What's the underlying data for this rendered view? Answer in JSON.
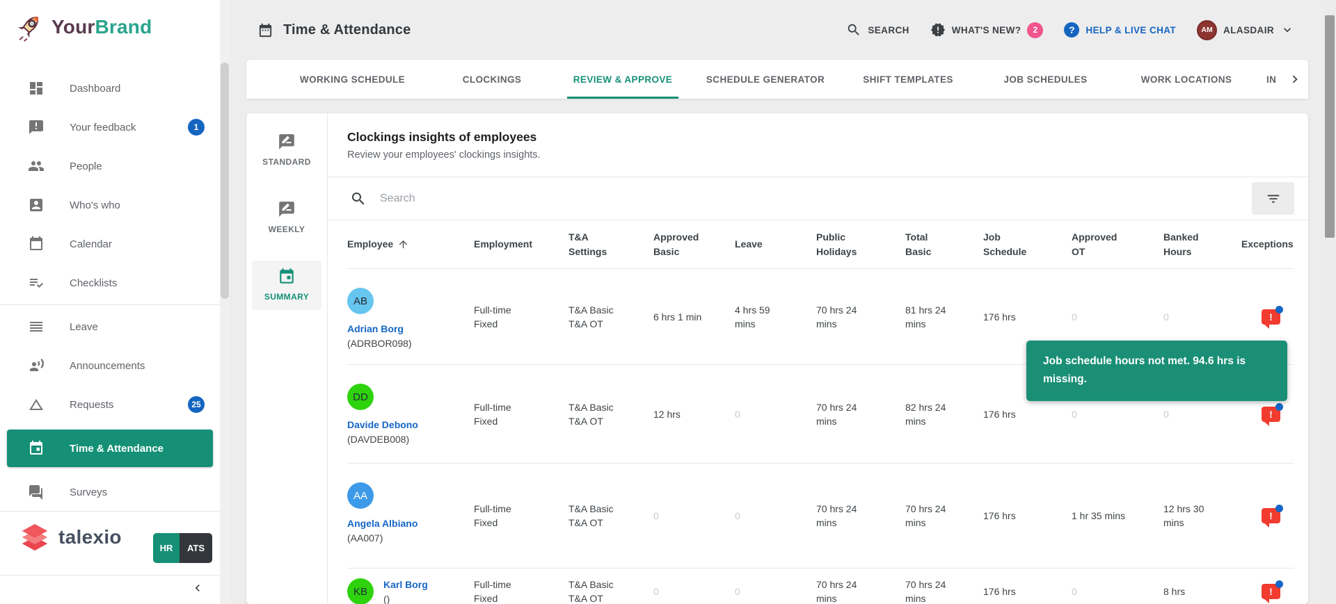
{
  "colors": {
    "accent_teal": "#159077",
    "link_blue": "#1565c0",
    "badge_pink": "#f0558c",
    "alert_red": "#f13b2e",
    "logo_your": "#5a3a50",
    "logo_brand": "#2aa48d"
  },
  "brand": {
    "name_part1": "Your",
    "name_part2": "Brand",
    "product_name": "talexio",
    "product_badges": [
      "HR",
      "ATS"
    ]
  },
  "sidebar": {
    "items": [
      {
        "icon": "dashboard-icon",
        "label": "Dashboard"
      },
      {
        "icon": "feedback-icon",
        "label": "Your feedback",
        "badge": "1"
      },
      {
        "icon": "people-icon",
        "label": "People"
      },
      {
        "icon": "whos-who-icon",
        "label": "Who's who"
      },
      {
        "icon": "calendar-icon",
        "label": "Calendar"
      },
      {
        "icon": "checklists-icon",
        "label": "Checklists",
        "divider_after": true
      },
      {
        "icon": "leave-icon",
        "label": "Leave"
      },
      {
        "icon": "announcements-icon",
        "label": "Announcements"
      },
      {
        "icon": "requests-icon",
        "label": "Requests",
        "badge": "25"
      },
      {
        "icon": "time-attendance-icon",
        "label": "Time & Attendance",
        "selected": true
      },
      {
        "icon": "surveys-icon",
        "label": "Surveys"
      }
    ]
  },
  "topbar": {
    "title": "Time & Attendance",
    "search_label": "SEARCH",
    "whats_new_label": "WHAT'S NEW?",
    "whats_new_count": "2",
    "help_icon_text": "?",
    "help_label": "HELP & LIVE CHAT",
    "user_initials": "AM",
    "user_name": "ALASDAIR"
  },
  "tabs": {
    "items": [
      {
        "label": "WORKING SCHEDULE"
      },
      {
        "label": "CLOCKINGS"
      },
      {
        "label": "REVIEW & APPROVE",
        "active": true
      },
      {
        "label": "SCHEDULE GENERATOR"
      },
      {
        "label": "SHIFT TEMPLATES"
      },
      {
        "label": "JOB SCHEDULES"
      },
      {
        "label": "WORK LOCATIONS"
      }
    ],
    "overflow_label": "INSIGHTS"
  },
  "subnav": {
    "items": [
      {
        "icon": "rate-review-icon",
        "label": "STANDARD"
      },
      {
        "icon": "rate-review-icon",
        "label": "WEEKLY"
      },
      {
        "icon": "calendar-summary-icon",
        "label": "SUMMARY",
        "selected": true
      }
    ]
  },
  "panel": {
    "title": "Clockings insights of employees",
    "subtitle": "Review your employees' clockings insights.",
    "search_placeholder": "Search"
  },
  "table": {
    "columns": [
      {
        "label": "Employee",
        "sorted": "asc"
      },
      {
        "label": "Employment"
      },
      {
        "label": "T&A\nSettings"
      },
      {
        "label": "Approved\nBasic"
      },
      {
        "label": "Leave"
      },
      {
        "label": "Public\nHolidays"
      },
      {
        "label": "Total\nBasic"
      },
      {
        "label": "Job\nSchedule"
      },
      {
        "label": "Approved\nOT"
      },
      {
        "label": "Banked\nHours"
      },
      {
        "label": "Exceptions"
      }
    ],
    "rows": [
      {
        "initials": "AB",
        "avatar_color": "#67c6f0",
        "avatar_text_color": "#1f2a30",
        "name": "Adrian Borg",
        "code": "(ADRBOR098)",
        "employment": "Full-time\nFixed",
        "ta_settings": "T&A Basic\nT&A OT",
        "approved_basic": "6 hrs 1 min",
        "leave": "4 hrs 59\nmins",
        "public_holidays": "70 hrs 24\nmins",
        "total_basic": "81 hrs 24\nmins",
        "job_schedule": "176 hrs",
        "approved_ot": "0",
        "banked_hours": "0",
        "exception": true
      },
      {
        "initials": "DD",
        "avatar_color": "#2ed30e",
        "avatar_text_color": "#1f2a30",
        "name": "Davide Debono",
        "code": "(DAVDEB008)",
        "employment": "Full-time\nFixed",
        "ta_settings": "T&A Basic\nT&A OT",
        "approved_basic": "12 hrs",
        "leave": "0",
        "public_holidays": "70 hrs 24\nmins",
        "total_basic": "82 hrs 24\nmins",
        "job_schedule": "176 hrs",
        "approved_ot": "0",
        "banked_hours": "0",
        "exception": true
      },
      {
        "initials": "AA",
        "avatar_color": "#3d9ae8",
        "avatar_text_color": "#ffffff",
        "name": "Angela Albiano",
        "code": "(AA007)",
        "employment": "Full-time\nFixed",
        "ta_settings": "T&A Basic\nT&A OT",
        "approved_basic": "0",
        "leave": "0",
        "public_holidays": "70 hrs 24\nmins",
        "total_basic": "70 hrs 24\nmins",
        "job_schedule": "176 hrs",
        "approved_ot": "1 hr 35 mins",
        "banked_hours": "12 hrs 30\nmins",
        "exception": true
      },
      {
        "initials": "KB",
        "avatar_color": "#2ed30e",
        "avatar_text_color": "#1f2a30",
        "name": "Karl Borg",
        "code": "()",
        "layout": "inline",
        "employment": "Full-time\nFixed",
        "ta_settings": "T&A Basic\nT&A OT",
        "approved_basic": "0",
        "leave": "0",
        "public_holidays": "70 hrs 24\nmins",
        "total_basic": "70 hrs 24\nmins",
        "job_schedule": "176 hrs",
        "approved_ot": "0",
        "banked_hours": "8 hrs",
        "exception": true
      }
    ]
  },
  "tooltip": {
    "text": "Job schedule hours not met. 94.6 hrs is missing."
  }
}
